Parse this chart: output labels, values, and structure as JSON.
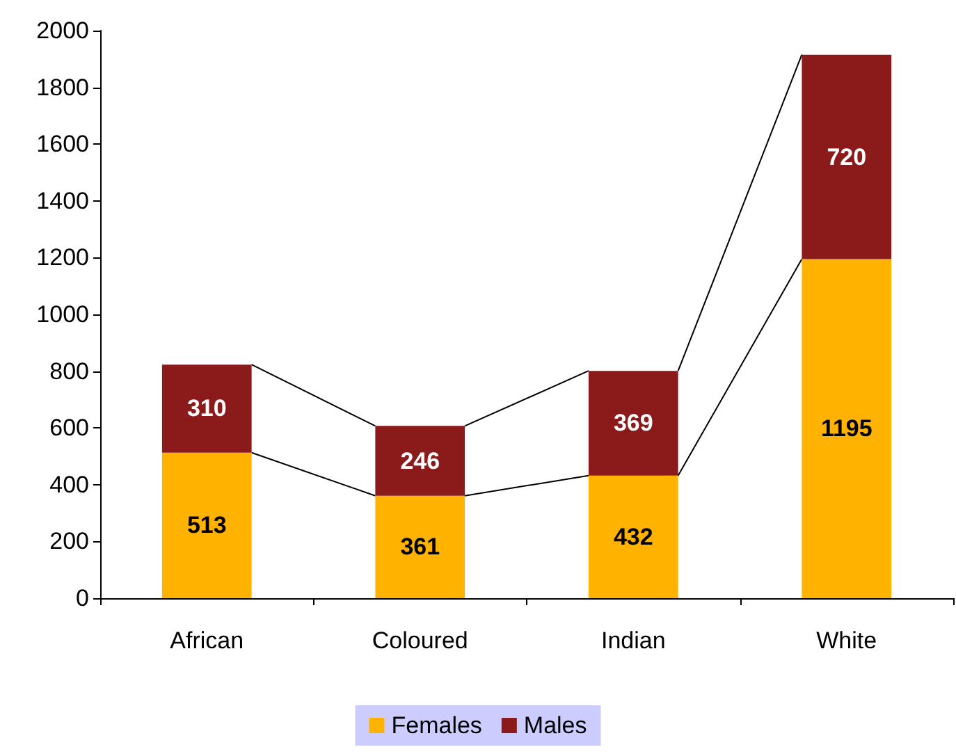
{
  "chart_data": {
    "type": "bar",
    "stacked": true,
    "categories": [
      "African",
      "Coloured",
      "Indian",
      "White"
    ],
    "series": [
      {
        "name": "Females",
        "color": "#ffb300",
        "values": [
          513,
          361,
          432,
          1195
        ]
      },
      {
        "name": "Males",
        "color": "#8b1a1a",
        "values": [
          310,
          246,
          369,
          720
        ]
      }
    ],
    "ylim": [
      0,
      2000
    ],
    "yticks": [
      0,
      200,
      400,
      600,
      800,
      1000,
      1200,
      1400,
      1600,
      1800,
      2000
    ],
    "grid": false,
    "legend": "bottom",
    "data_labels": true
  }
}
